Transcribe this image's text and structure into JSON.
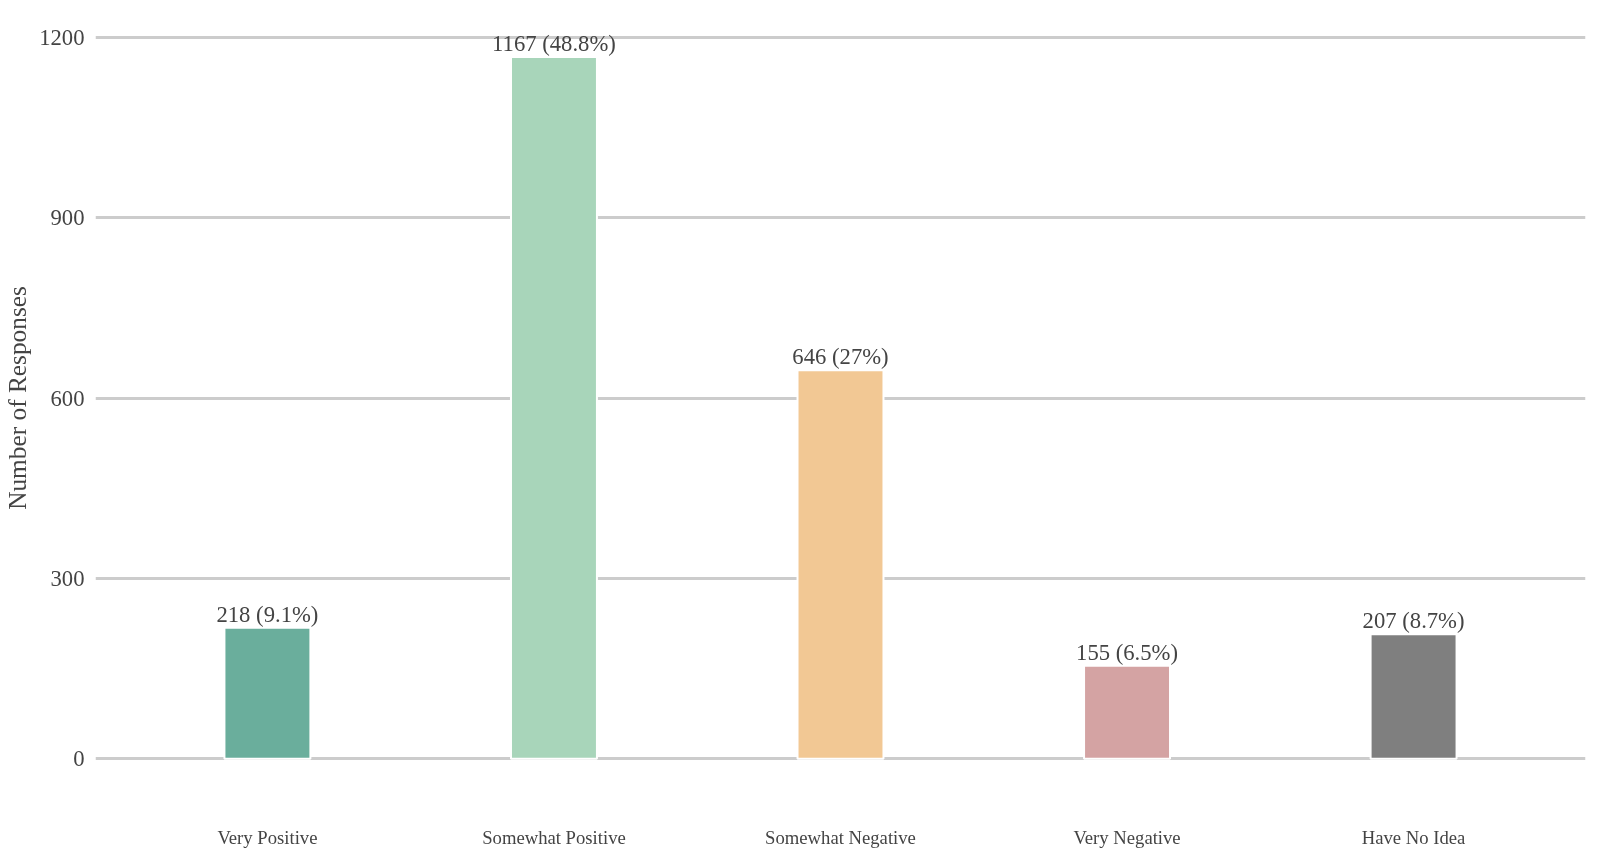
{
  "chart_data": {
    "type": "bar",
    "ylabel": "Number of Responses",
    "categories": [
      "Very Positive",
      "Somewhat Positive",
      "Somewhat Negative",
      "Very Negative",
      "Have No Idea"
    ],
    "values": [
      218,
      1167,
      646,
      155,
      207
    ],
    "colors": [
      "#6aae9c",
      "#a8d5ba",
      "#f2c894",
      "#d4a3a3",
      "#7f7f7f"
    ],
    "value_labels": [
      "218 (9.1%)",
      "1167 (48.8%)",
      "646 (27%)",
      "155 (6.5%)",
      "207 (8.7%)"
    ],
    "ylim": [
      0,
      1200
    ],
    "yticks": [
      0,
      300,
      600,
      900,
      1200
    ],
    "grid": "y"
  }
}
